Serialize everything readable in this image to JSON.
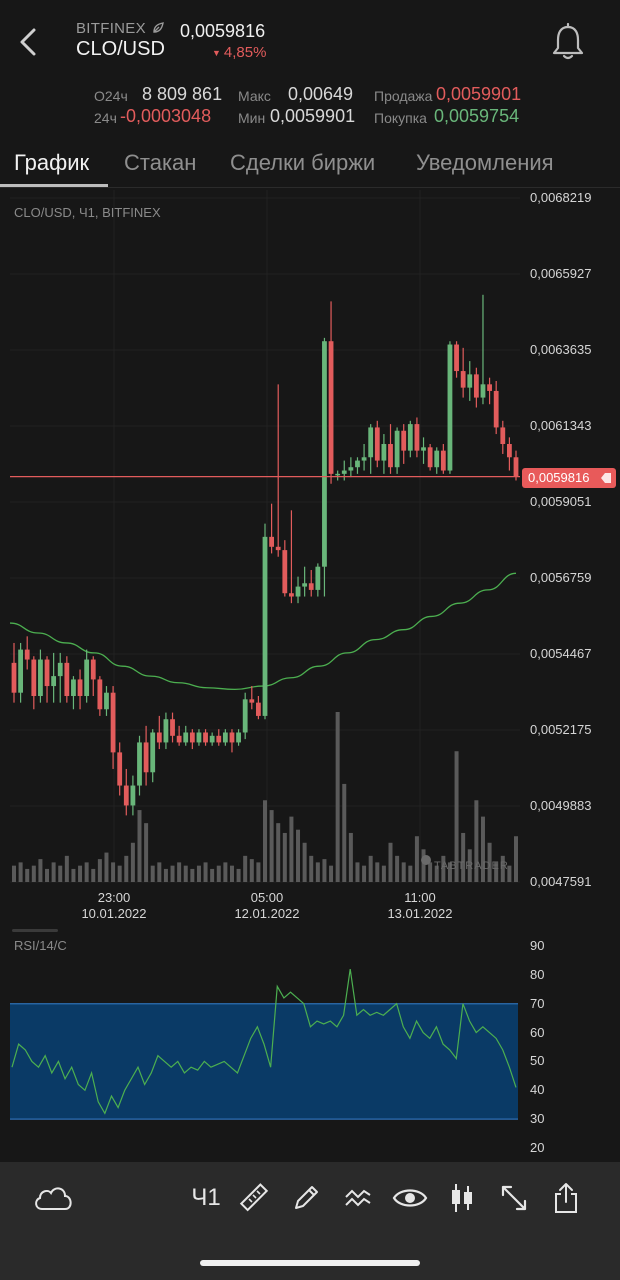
{
  "header": {
    "exchange": "BITFINEX",
    "pair": "CLO/USD",
    "price": "0,0059816",
    "change": "4,85%",
    "change_arrow": "▼"
  },
  "stats": {
    "vol_label": "О24ч",
    "vol_value": "8 809 861",
    "ch_label": "24ч",
    "ch_value": "-0,0003048",
    "max_label": "Макс",
    "max_value": "0,00649",
    "min_label": "Мин",
    "min_value": "0,0059901",
    "sell_label": "Продажа",
    "sell_value": "0,0059901",
    "buy_label": "Покупка",
    "buy_value": "0,0059754"
  },
  "tabs": [
    "График",
    "Стакан",
    "Сделки биржи",
    "Уведомления"
  ],
  "chart": {
    "title": "CLO/USD, Ч1, BITFINEX",
    "price_tag": "0,0059816",
    "watermark": "TABTRADER",
    "y_ticks": [
      "0,0068219",
      "0,0065927",
      "0,0063635",
      "0,0061343",
      "0,0059051",
      "0,0056759",
      "0,0054467",
      "0,0052175",
      "0,0049883",
      "0,0047591"
    ],
    "x_ticks": [
      {
        "time": "23:00",
        "date": "10.01.2022"
      },
      {
        "time": "05:00",
        "date": "12.01.2022"
      },
      {
        "time": "11:00",
        "date": "13.01.2022"
      }
    ],
    "colors": {
      "up": "#69b67a",
      "down": "#e25c5c",
      "ma": "#4caf50",
      "volume": "#5a5a5a"
    }
  },
  "chart_data": {
    "type": "candlestick",
    "current_price": 0.0059816,
    "ylim": [
      0.0047591,
      0.0068219
    ],
    "candles_ohlc": [
      [
        0.00542,
        0.00548,
        0.0053,
        0.00533
      ],
      [
        0.00533,
        0.00548,
        0.0053,
        0.00546
      ],
      [
        0.00546,
        0.0055,
        0.0054,
        0.00543
      ],
      [
        0.00543,
        0.00544,
        0.00528,
        0.00532
      ],
      [
        0.00532,
        0.00546,
        0.0053,
        0.00543
      ],
      [
        0.00543,
        0.00544,
        0.0053,
        0.00535
      ],
      [
        0.00535,
        0.00545,
        0.0053,
        0.00538
      ],
      [
        0.00538,
        0.00545,
        0.0053,
        0.00542
      ],
      [
        0.00542,
        0.00544,
        0.0053,
        0.00532
      ],
      [
        0.00532,
        0.00538,
        0.00528,
        0.00537
      ],
      [
        0.00537,
        0.0054,
        0.00528,
        0.00532
      ],
      [
        0.00532,
        0.00546,
        0.0053,
        0.00543
      ],
      [
        0.00543,
        0.00544,
        0.00532,
        0.00537
      ],
      [
        0.00537,
        0.00538,
        0.00526,
        0.00528
      ],
      [
        0.00528,
        0.00535,
        0.00526,
        0.00533
      ],
      [
        0.00533,
        0.00535,
        0.0051,
        0.00515
      ],
      [
        0.00515,
        0.00518,
        0.00502,
        0.00505
      ],
      [
        0.00505,
        0.0051,
        0.00496,
        0.00499
      ],
      [
        0.00499,
        0.00508,
        0.00496,
        0.00505
      ],
      [
        0.00505,
        0.0052,
        0.00502,
        0.00518
      ],
      [
        0.00518,
        0.00523,
        0.00505,
        0.00509
      ],
      [
        0.00509,
        0.00522,
        0.00506,
        0.00521
      ],
      [
        0.00521,
        0.00526,
        0.00516,
        0.00518
      ],
      [
        0.00518,
        0.00527,
        0.00516,
        0.00525
      ],
      [
        0.00525,
        0.00527,
        0.00518,
        0.0052
      ],
      [
        0.0052,
        0.00523,
        0.00517,
        0.00518
      ],
      [
        0.00518,
        0.00523,
        0.00517,
        0.00521
      ],
      [
        0.00521,
        0.00522,
        0.00516,
        0.00518
      ],
      [
        0.00518,
        0.00522,
        0.00517,
        0.00521
      ],
      [
        0.00521,
        0.00522,
        0.00517,
        0.00518
      ],
      [
        0.00518,
        0.00521,
        0.00517,
        0.0052
      ],
      [
        0.0052,
        0.00522,
        0.00517,
        0.00518
      ],
      [
        0.00518,
        0.00522,
        0.00517,
        0.00521
      ],
      [
        0.00521,
        0.00522,
        0.00515,
        0.00518
      ],
      [
        0.00518,
        0.00522,
        0.00517,
        0.00521
      ],
      [
        0.00521,
        0.00533,
        0.00519,
        0.00531
      ],
      [
        0.00531,
        0.00535,
        0.00528,
        0.0053
      ],
      [
        0.0053,
        0.00532,
        0.00525,
        0.00526
      ],
      [
        0.00526,
        0.00584,
        0.00525,
        0.0058
      ],
      [
        0.0058,
        0.0059,
        0.00575,
        0.00577
      ],
      [
        0.00577,
        0.00626,
        0.00574,
        0.00576
      ],
      [
        0.00576,
        0.00579,
        0.00562,
        0.00563
      ],
      [
        0.00563,
        0.00588,
        0.0056,
        0.00562
      ],
      [
        0.00562,
        0.00568,
        0.0056,
        0.00565
      ],
      [
        0.00565,
        0.00571,
        0.00562,
        0.00566
      ],
      [
        0.00566,
        0.0057,
        0.00562,
        0.00564
      ],
      [
        0.00564,
        0.00572,
        0.00562,
        0.00571
      ],
      [
        0.00571,
        0.0064,
        0.00562,
        0.00639
      ],
      [
        0.00639,
        0.00651,
        0.00596,
        0.00599
      ],
      [
        0.00599,
        0.006,
        0.00597,
        0.00599
      ],
      [
        0.00599,
        0.00603,
        0.00597,
        0.006
      ],
      [
        0.006,
        0.00604,
        0.00598,
        0.00601
      ],
      [
        0.00601,
        0.00604,
        0.00599,
        0.00603
      ],
      [
        0.00603,
        0.00608,
        0.006,
        0.00604
      ],
      [
        0.00604,
        0.00614,
        0.00599,
        0.00613
      ],
      [
        0.00613,
        0.00615,
        0.00601,
        0.00603
      ],
      [
        0.00603,
        0.00611,
        0.00599,
        0.00608
      ],
      [
        0.00608,
        0.00614,
        0.00599,
        0.00601
      ],
      [
        0.00601,
        0.00613,
        0.00599,
        0.00612
      ],
      [
        0.00612,
        0.00614,
        0.00602,
        0.00606
      ],
      [
        0.00606,
        0.00615,
        0.00604,
        0.00614
      ],
      [
        0.00614,
        0.00616,
        0.00604,
        0.00606
      ],
      [
        0.00606,
        0.0061,
        0.00602,
        0.00607
      ],
      [
        0.00607,
        0.00608,
        0.006,
        0.00601
      ],
      [
        0.00601,
        0.00607,
        0.00599,
        0.00606
      ],
      [
        0.00606,
        0.00608,
        0.00599,
        0.006
      ],
      [
        0.006,
        0.00639,
        0.00599,
        0.00638
      ],
      [
        0.00638,
        0.00639,
        0.00628,
        0.0063
      ],
      [
        0.0063,
        0.00637,
        0.00622,
        0.00625
      ],
      [
        0.00625,
        0.00633,
        0.00621,
        0.00629
      ],
      [
        0.00629,
        0.00631,
        0.00619,
        0.00622
      ],
      [
        0.00622,
        0.00653,
        0.0062,
        0.00626
      ],
      [
        0.00626,
        0.00628,
        0.0062,
        0.00624
      ],
      [
        0.00624,
        0.00627,
        0.00611,
        0.00613
      ],
      [
        0.00613,
        0.00615,
        0.00605,
        0.00608
      ],
      [
        0.00608,
        0.0061,
        0.006,
        0.00604
      ],
      [
        0.00604,
        0.00606,
        0.00597,
        0.005982
      ]
    ],
    "moving_average": [
      0.00554,
      0.00551,
      0.00548,
      0.00545,
      0.00541,
      0.00538,
      0.00536,
      0.005345,
      0.00534,
      0.00535,
      0.005375,
      0.00541,
      0.00545,
      0.00549,
      0.00552,
      0.00556,
      0.0056,
      0.00564,
      0.00569
    ],
    "volume": [
      5,
      6,
      4,
      5,
      7,
      4,
      6,
      5,
      8,
      4,
      5,
      6,
      4,
      7,
      9,
      6,
      5,
      8,
      12,
      22,
      18,
      5,
      6,
      4,
      5,
      6,
      5,
      4,
      5,
      6,
      4,
      5,
      6,
      5,
      4,
      8,
      7,
      6,
      25,
      22,
      18,
      15,
      20,
      16,
      12,
      8,
      6,
      7,
      5,
      52,
      30,
      15,
      6,
      5,
      8,
      6,
      5,
      12,
      8,
      6,
      5,
      14,
      10,
      6,
      5,
      8,
      6,
      40,
      15,
      10,
      25,
      20,
      12,
      6,
      8,
      5,
      14
    ],
    "rsi": {
      "label": "RSI/14/C",
      "ylim": [
        20,
        90
      ],
      "y_ticks": [
        "90",
        "80",
        "70",
        "60",
        "50",
        "40",
        "30",
        "20"
      ],
      "band": [
        30,
        70
      ],
      "values": [
        48,
        56,
        54,
        50,
        48,
        52,
        46,
        50,
        44,
        48,
        42,
        40,
        46,
        36,
        32,
        38,
        34,
        40,
        44,
        48,
        42,
        46,
        52,
        50,
        48,
        50,
        46,
        48,
        47,
        50,
        48,
        49,
        50,
        48,
        46,
        52,
        58,
        62,
        56,
        48,
        76,
        72,
        74,
        72,
        70,
        62,
        64,
        63,
        64,
        62,
        66,
        82,
        66,
        68,
        66,
        67,
        66,
        68,
        70,
        62,
        58,
        64,
        60,
        58,
        62,
        56,
        54,
        51,
        70,
        64,
        60,
        62,
        60,
        58,
        54,
        48,
        41
      ]
    }
  },
  "toolbar": {
    "timeframe": "Ч1",
    "icons": [
      "cloud-icon",
      "ruler-icon",
      "pencil-icon",
      "indicators-icon",
      "eye-icon",
      "candles-icon",
      "expand-icon",
      "share-icon"
    ]
  }
}
